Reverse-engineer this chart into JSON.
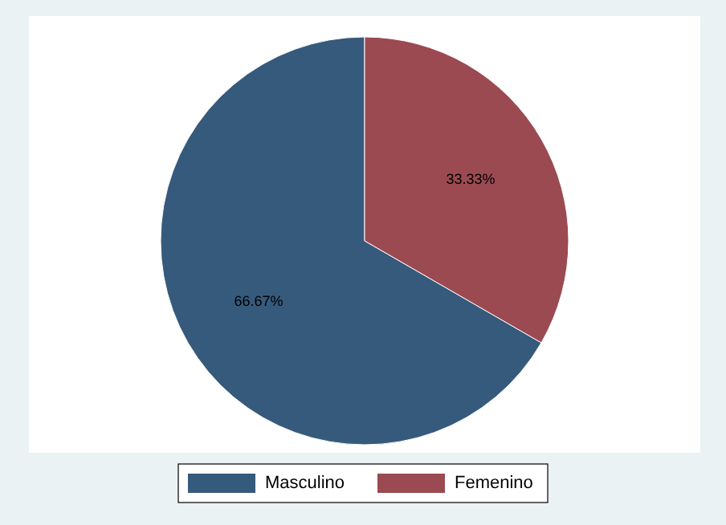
{
  "chart_data": {
    "type": "pie",
    "categories": [
      "Masculino",
      "Femenino"
    ],
    "values": [
      66.67,
      33.33
    ],
    "colors": [
      "#365a7c",
      "#9b4a52"
    ],
    "value_labels": [
      "66.67%",
      "33.33%"
    ],
    "legend": "bottom"
  }
}
